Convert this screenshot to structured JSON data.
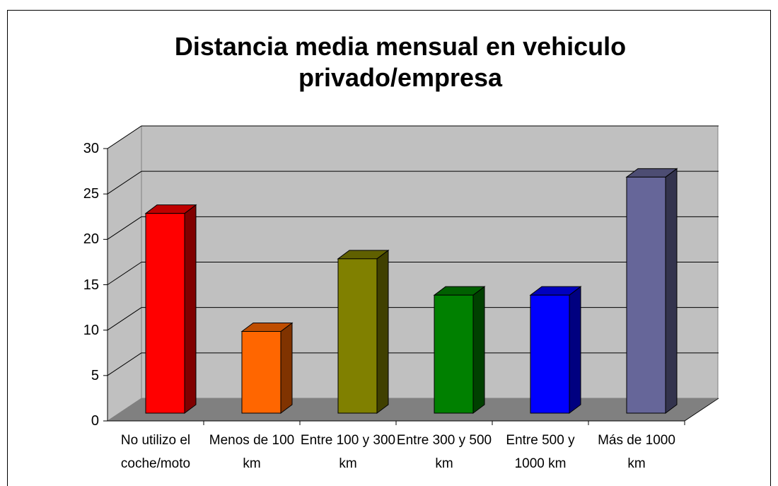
{
  "chart_data": {
    "type": "bar3d",
    "title": "Distancia media mensual en vehiculo privado/empresa",
    "categories": [
      "No utilizo el coche/moto",
      "Menos de 100 km",
      "Entre 100 y 300 km",
      "Entre 300 y 500 km",
      "Entre 500 y 1000 km",
      "Más de 1000 km"
    ],
    "values": [
      22,
      9,
      17,
      13,
      13,
      26
    ],
    "colors": [
      "#ff0000",
      "#ff6600",
      "#808000",
      "#008000",
      "#0000ff",
      "#666699"
    ],
    "ylim": [
      0,
      30
    ],
    "yticks": [
      0,
      5,
      10,
      15,
      20,
      25,
      30
    ],
    "grid": true
  }
}
